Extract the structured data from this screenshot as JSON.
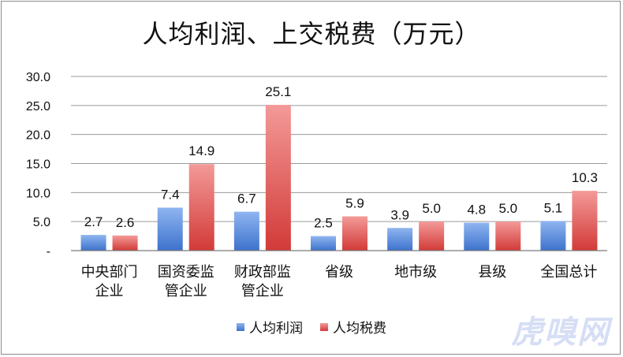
{
  "chart_data": {
    "type": "bar",
    "title": "人均利润、上交税费（万元）",
    "categories": [
      "中央部门\n企业",
      "国资委监\n管企业",
      "财政部监\n管企业",
      "省级",
      "地市级",
      "县级",
      "全国总计"
    ],
    "series": [
      {
        "name": "人均利润",
        "values": [
          2.7,
          7.4,
          6.7,
          2.5,
          3.9,
          4.8,
          5.1
        ],
        "color": "#5b8fdb"
      },
      {
        "name": "人均税费",
        "values": [
          2.6,
          14.9,
          25.1,
          5.9,
          5.0,
          5.0,
          10.3
        ],
        "color": "#e0504f"
      }
    ],
    "data_labels": [
      [
        "2.7",
        "7.4",
        "6.7",
        "2.5",
        "3.9",
        "4.8",
        "5.1"
      ],
      [
        "2.6",
        "14.9",
        "25.1",
        "5.9",
        "5.0",
        "5.0",
        "10.3"
      ]
    ],
    "ylim": [
      0,
      30
    ],
    "yticks": [
      0,
      5,
      10,
      15,
      20,
      25,
      30
    ],
    "ytick_labels": [
      "-",
      "5.0",
      "10.0",
      "15.0",
      "20.0",
      "25.0",
      "30.0"
    ],
    "grid": true,
    "legend_position": "bottom"
  },
  "watermark": "虎嗅网"
}
